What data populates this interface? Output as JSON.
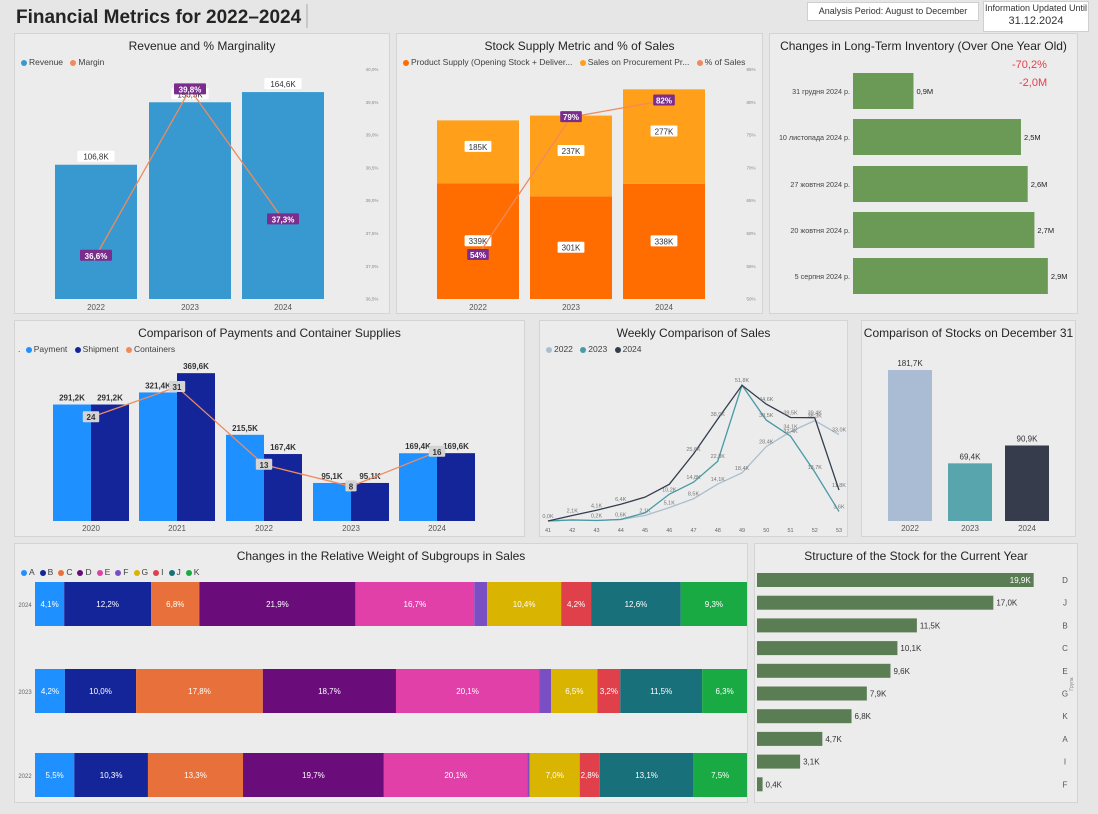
{
  "header": {
    "title": "Financial Metrics for 2022–2024",
    "analysis_period": "Analysis Period: August to December",
    "updated_label": "Information Updated Until",
    "updated_date": "31.12.2024"
  },
  "colors": {
    "revenue": "#3799d0",
    "margin_line": "#f08a5d",
    "margin_label_bg": "#7b2d8e",
    "supply_top": "#ff9f1a",
    "supply_bottom": "#ff6d00",
    "percent_label_bg": "#7b2d8e",
    "inventory": "#6a9a55",
    "payment": "#1e90ff",
    "shipment": "#14259a",
    "containers": "#f08a5d",
    "week_2022": "#a9bfcf",
    "week_2023": "#4a9aa5",
    "week_2024": "#333d4d",
    "stock_2022": "#a9bcd4",
    "stock_2023": "#58a5ae",
    "stock_2024": "#363c4c",
    "stock_structure": "#5a7d54"
  },
  "chart_data": [
    {
      "id": "revenue",
      "type": "bar",
      "title": "Revenue and % Marginality",
      "legend": [
        "Revenue",
        "Margin"
      ],
      "categories": [
        "2022",
        "2023",
        "2024"
      ],
      "series": [
        {
          "name": "Revenue",
          "values": [
            106.8,
            156.5,
            164.6
          ],
          "labels": [
            "106,8K",
            "156,5K",
            "164,6K"
          ]
        },
        {
          "name": "Margin",
          "values": [
            36.6,
            39.8,
            37.3
          ],
          "labels": [
            "36,6%",
            "39,8%",
            "37,3%"
          ]
        }
      ],
      "ylim": [
        0,
        175
      ],
      "y2lim": [
        36.0,
        40.0
      ],
      "y2_ticks": [
        "40,0%",
        "39,5%",
        "39,0%",
        "38,5%",
        "38,0%",
        "37,5%",
        "37,0%",
        "36,5%",
        "36,0%"
      ]
    },
    {
      "id": "stock_supply",
      "type": "bar",
      "title": "Stock Supply Metric and % of Sales",
      "legend": [
        "Product Supply (Opening Stock + Deliver...",
        "Sales on Procurement Pr...",
        "% of Sales"
      ],
      "categories": [
        "2022",
        "2023",
        "2024"
      ],
      "series": [
        {
          "name": "Product Supply (Opening Stock + Deliver...",
          "values": [
            339,
            301,
            338
          ],
          "labels": [
            "339K",
            "301K",
            "338K"
          ]
        },
        {
          "name": "Sales on Procurement Pr...",
          "values": [
            185,
            237,
            277
          ],
          "labels": [
            "185K",
            "237K",
            "277K"
          ]
        },
        {
          "name": "% of Sales",
          "values": [
            54,
            79,
            82
          ],
          "labels": [
            "54%",
            "79%",
            "82%"
          ]
        }
      ],
      "ylim": [
        0,
        660
      ],
      "y2lim": [
        50,
        85
      ],
      "y2_ticks": [
        "85%",
        "80%",
        "75%",
        "70%",
        "65%",
        "60%",
        "55%",
        "50%"
      ]
    },
    {
      "id": "long_term_inventory",
      "type": "bar",
      "orientation": "horizontal",
      "title": "Changes in Long-Term Inventory (Over One Year Old)",
      "categories": [
        "31 грудня 2024 р.",
        "10 листопада 2024 р.",
        "27 жовтня 2024 р.",
        "20 жовтня 2024 р.",
        "5 серпня 2024 р."
      ],
      "values": [
        0.9,
        2.5,
        2.6,
        2.7,
        2.9
      ],
      "labels": [
        "0,9M",
        "2,5M",
        "2,6M",
        "2,7M",
        "2,9M"
      ],
      "xlim": [
        0,
        3.2
      ],
      "annotations": [
        "-70,2%",
        "-2,0M"
      ]
    },
    {
      "id": "payments_containers",
      "type": "bar",
      "title": "Comparison of Payments and Container Supplies",
      "legend": [
        "Payment",
        "Shipment",
        "Containers"
      ],
      "categories": [
        "2020",
        "2021",
        "2022",
        "2023",
        "2024"
      ],
      "series": [
        {
          "name": "Payment",
          "values": [
            291.2,
            321.4,
            215.5,
            95.1,
            169.4
          ],
          "labels": [
            "291,2K",
            "321,4K",
            "215,5K",
            "95,1K",
            "169,4K"
          ]
        },
        {
          "name": "Shipment",
          "values": [
            291.2,
            369.6,
            167.4,
            95.1,
            169.6
          ],
          "labels": [
            "291,2K",
            "369,6K",
            "167,4K",
            "95,1K",
            "169,6K"
          ]
        },
        {
          "name": "Containers",
          "values": [
            24,
            31,
            13,
            8,
            16
          ],
          "labels": [
            "24",
            "31",
            "13",
            "8",
            "16"
          ]
        }
      ],
      "ylim": [
        0,
        400
      ],
      "y2lim": [
        0,
        37
      ]
    },
    {
      "id": "weekly_sales",
      "type": "line",
      "title": "Weekly Comparison of Sales",
      "legend": [
        "2022",
        "2023",
        "2024"
      ],
      "x": [
        "41",
        "42",
        "43",
        "44",
        "45",
        "46",
        "47",
        "48",
        "49",
        "50",
        "51",
        "52",
        "53"
      ],
      "series": [
        {
          "name": "2022",
          "values": [
            0.0,
            0.4,
            0.2,
            0.6,
            2.1,
            5.1,
            8.5,
            14.1,
            18.4,
            28.4,
            34.1,
            38.3,
            33.0
          ],
          "labels": [
            "0,0K",
            "",
            "0,2K",
            "0,6K",
            "2,1K",
            "5,1K",
            "8,5K",
            "14,1K",
            "18,4K",
            "28,4K",
            "34,1K",
            "38,3K",
            "33,0K"
          ]
        },
        {
          "name": "2023",
          "values": [
            0.0,
            0.4,
            0.2,
            0.6,
            3.1,
            10.2,
            14.8,
            22.8,
            51.8,
            38.5,
            32.4,
            18.7,
            3.6
          ],
          "labels": [
            "",
            "",
            "",
            "",
            "",
            "10,2K",
            "14,8K",
            "22,8K",
            "",
            "38,5K",
            "32,4K",
            "18,7K",
            "3,6K"
          ]
        },
        {
          "name": "2024",
          "values": [
            0.0,
            2.1,
            4.1,
            6.4,
            9.1,
            14.0,
            25.6,
            38.9,
            51.8,
            44.6,
            39.5,
            39.4,
            11.8
          ],
          "labels": [
            "",
            "2,1K",
            "4,1K",
            "6,4K",
            "",
            "",
            "25,6K",
            "38,9K",
            "51,8K",
            "44,6K",
            "39,5K",
            "39,4K",
            "11,8K"
          ]
        }
      ],
      "ylim": [
        0,
        58
      ],
      "y_ticks": [
        "50",
        "45",
        "40",
        "35",
        "30",
        "25",
        "20",
        "15",
        "10",
        "5",
        "0"
      ]
    },
    {
      "id": "stocks_dec31",
      "type": "bar",
      "title": "Comparison of Stocks on December 31",
      "categories": [
        "2022",
        "2023",
        "2024"
      ],
      "values": [
        181.7,
        69.4,
        90.9
      ],
      "labels": [
        "181,7K",
        "69,4K",
        "90,9K"
      ],
      "ylim": [
        0,
        195
      ]
    },
    {
      "id": "subgroups",
      "type": "bar",
      "stacked": "100%",
      "orientation": "horizontal",
      "title": "Changes in the Relative Weight of Subgroups in Sales",
      "legend": [
        "A",
        "B",
        "C",
        "D",
        "E",
        "F",
        "G",
        "I",
        "J",
        "K"
      ],
      "legend_colors": [
        "#1e90ff",
        "#14259a",
        "#e8703a",
        "#6a0d7b",
        "#e040a8",
        "#7b4fc4",
        "#d9b400",
        "#e0404a",
        "#17707a",
        "#1aaa44"
      ],
      "categories": [
        "2024",
        "2023",
        "2022"
      ],
      "rows": [
        {
          "year": "2024",
          "values": [
            4.1,
            12.2,
            6.8,
            21.9,
            16.7,
            1.8,
            10.4,
            4.2,
            12.6,
            9.3
          ],
          "labels": [
            "4,1%",
            "12,2%",
            "6,8%",
            "21,9%",
            "16,7%",
            "",
            "10,4%",
            "4,2%",
            "12,6%",
            "9,3%"
          ]
        },
        {
          "year": "2023",
          "values": [
            4.2,
            10.0,
            17.8,
            18.7,
            20.1,
            1.7,
            6.5,
            3.2,
            11.5,
            6.3
          ],
          "labels": [
            "4,2%",
            "10,0%",
            "17,8%",
            "18,7%",
            "20,1%",
            "",
            "6,5%",
            "3,2%",
            "11,5%",
            "6,3%"
          ]
        },
        {
          "year": "2022",
          "values": [
            5.5,
            10.3,
            13.3,
            19.7,
            20.1,
            0.3,
            7.0,
            2.8,
            13.1,
            7.5
          ],
          "labels": [
            "5,5%",
            "10,3%",
            "13,3%",
            "19,7%",
            "20,1%",
            "",
            "7,0%",
            "2,8%",
            "13,1%",
            "7,5%"
          ]
        }
      ]
    },
    {
      "id": "stock_structure",
      "type": "bar",
      "orientation": "horizontal",
      "title": "Structure of the Stock for the Current Year",
      "categories": [
        "D",
        "J",
        "B",
        "C",
        "E",
        "G",
        "K",
        "A",
        "I",
        "F"
      ],
      "values": [
        19.9,
        17.0,
        11.5,
        10.1,
        9.6,
        7.9,
        6.8,
        4.7,
        3.1,
        0.4
      ],
      "labels": [
        "19,9K",
        "17,0K",
        "11,5K",
        "10,1K",
        "9,6K",
        "7,9K",
        "6,8K",
        "4,7K",
        "3,1K",
        "0,4K"
      ],
      "xlim": [
        0,
        20.5
      ],
      "axis_label": "Група"
    }
  ]
}
